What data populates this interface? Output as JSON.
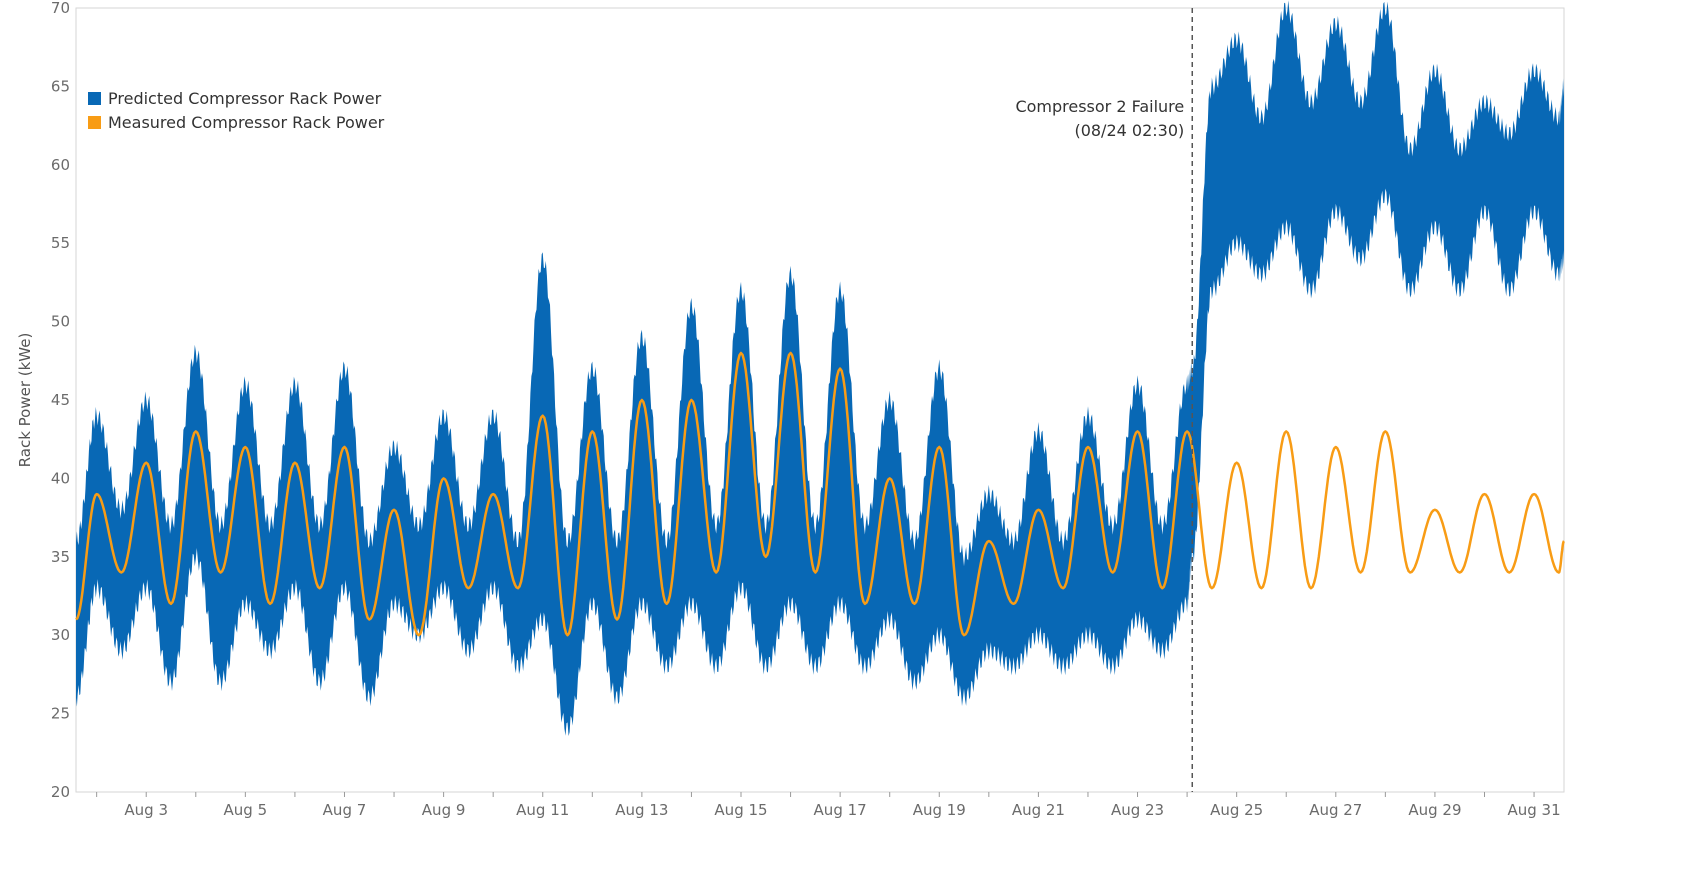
{
  "chart_data": {
    "type": "area",
    "ylabel": "Rack Power (kWe)",
    "xlabel": "",
    "ylim": [
      20,
      70
    ],
    "yticks": [
      20,
      25,
      30,
      35,
      40,
      45,
      50,
      55,
      60,
      65,
      70
    ],
    "xlim": [
      "2018-08-01T14:00",
      "2018-08-31T14:30"
    ],
    "xtick_labels": [
      "Aug 3",
      "Aug 5",
      "Aug 7",
      "Aug 9",
      "Aug 11",
      "Aug 13",
      "Aug 15",
      "Aug 17",
      "Aug 19",
      "Aug 21",
      "Aug 23",
      "Aug 25",
      "Aug 27",
      "Aug 29",
      "Aug 31"
    ],
    "xtick_dates": [
      "2018-08-03",
      "2018-08-05",
      "2018-08-07",
      "2018-08-09",
      "2018-08-11",
      "2018-08-13",
      "2018-08-15",
      "2018-08-17",
      "2018-08-19",
      "2018-08-21",
      "2018-08-23",
      "2018-08-25",
      "2018-08-27",
      "2018-08-29",
      "2018-08-31"
    ],
    "grid": false,
    "legend": {
      "position": "top-left",
      "entries": [
        {
          "label": "Predicted Compressor Rack Power",
          "color": "#0868b5"
        },
        {
          "label": "Measured Compressor Rack Power",
          "color": "#f89c15"
        }
      ]
    },
    "annotation": {
      "line1": "Compressor 2 Failure",
      "line2": "(08/24 02:30)",
      "date": "2018-08-24T02:30"
    },
    "series": [
      {
        "name": "Predicted Compressor Rack Power",
        "kind": "band",
        "color": "#0868b5",
        "x": [
          "2018-08-01T14:00",
          "2018-08-02T00:00",
          "2018-08-02T12:00",
          "2018-08-03T00:00",
          "2018-08-03T12:00",
          "2018-08-04T00:00",
          "2018-08-04T12:00",
          "2018-08-05T00:00",
          "2018-08-05T12:00",
          "2018-08-06T00:00",
          "2018-08-06T12:00",
          "2018-08-07T00:00",
          "2018-08-07T12:00",
          "2018-08-08T00:00",
          "2018-08-08T12:00",
          "2018-08-09T00:00",
          "2018-08-09T12:00",
          "2018-08-10T00:00",
          "2018-08-10T12:00",
          "2018-08-11T00:00",
          "2018-08-11T12:00",
          "2018-08-12T00:00",
          "2018-08-12T12:00",
          "2018-08-13T00:00",
          "2018-08-13T12:00",
          "2018-08-14T00:00",
          "2018-08-14T12:00",
          "2018-08-15T00:00",
          "2018-08-15T12:00",
          "2018-08-16T00:00",
          "2018-08-16T12:00",
          "2018-08-17T00:00",
          "2018-08-17T12:00",
          "2018-08-18T00:00",
          "2018-08-18T12:00",
          "2018-08-19T00:00",
          "2018-08-19T12:00",
          "2018-08-20T00:00",
          "2018-08-20T12:00",
          "2018-08-21T00:00",
          "2018-08-21T12:00",
          "2018-08-22T00:00",
          "2018-08-22T12:00",
          "2018-08-23T00:00",
          "2018-08-23T12:00",
          "2018-08-24T00:00",
          "2018-08-24T02:30",
          "2018-08-24T12:00",
          "2018-08-25T00:00",
          "2018-08-25T12:00",
          "2018-08-26T00:00",
          "2018-08-26T12:00",
          "2018-08-27T00:00",
          "2018-08-27T12:00",
          "2018-08-28T00:00",
          "2018-08-28T12:00",
          "2018-08-29T00:00",
          "2018-08-29T12:00",
          "2018-08-30T00:00",
          "2018-08-30T12:00",
          "2018-08-31T00:00",
          "2018-08-31T12:00",
          "2018-08-31T14:30"
        ],
        "upper": [
          36,
          44,
          38,
          45,
          37,
          48,
          37,
          46,
          37,
          46,
          37,
          47,
          36,
          42,
          37,
          44,
          37,
          44,
          36,
          54,
          36,
          47,
          36,
          49,
          36,
          51,
          37,
          52,
          37,
          53,
          37,
          52,
          37,
          45,
          36,
          47,
          35,
          39,
          36,
          43,
          36,
          44,
          37,
          46,
          37,
          46,
          47,
          65,
          68,
          63,
          70,
          64,
          69,
          64,
          70,
          61,
          66,
          61,
          64,
          62,
          66,
          63,
          65
        ],
        "lower": [
          26,
          33,
          29,
          33,
          27,
          35,
          27,
          32,
          29,
          33,
          27,
          33,
          26,
          32,
          30,
          33,
          29,
          33,
          28,
          31,
          24,
          32,
          26,
          32,
          28,
          32,
          28,
          33,
          28,
          32,
          28,
          32,
          28,
          31,
          27,
          30,
          26,
          29,
          28,
          30,
          28,
          30,
          28,
          31,
          29,
          32,
          35,
          52,
          55,
          53,
          56,
          52,
          57,
          54,
          58,
          52,
          56,
          52,
          57,
          52,
          57,
          53,
          54
        ]
      },
      {
        "name": "Measured Compressor Rack Power",
        "kind": "line",
        "color": "#f89c15",
        "x": [
          "2018-08-01T14:00",
          "2018-08-02T00:00",
          "2018-08-02T12:00",
          "2018-08-03T00:00",
          "2018-08-03T12:00",
          "2018-08-04T00:00",
          "2018-08-04T12:00",
          "2018-08-05T00:00",
          "2018-08-05T12:00",
          "2018-08-06T00:00",
          "2018-08-06T12:00",
          "2018-08-07T00:00",
          "2018-08-07T12:00",
          "2018-08-08T00:00",
          "2018-08-08T12:00",
          "2018-08-09T00:00",
          "2018-08-09T12:00",
          "2018-08-10T00:00",
          "2018-08-10T12:00",
          "2018-08-11T00:00",
          "2018-08-11T12:00",
          "2018-08-12T00:00",
          "2018-08-12T12:00",
          "2018-08-13T00:00",
          "2018-08-13T12:00",
          "2018-08-14T00:00",
          "2018-08-14T12:00",
          "2018-08-15T00:00",
          "2018-08-15T12:00",
          "2018-08-16T00:00",
          "2018-08-16T12:00",
          "2018-08-17T00:00",
          "2018-08-17T12:00",
          "2018-08-18T00:00",
          "2018-08-18T12:00",
          "2018-08-19T00:00",
          "2018-08-19T12:00",
          "2018-08-20T00:00",
          "2018-08-20T12:00",
          "2018-08-21T00:00",
          "2018-08-21T12:00",
          "2018-08-22T00:00",
          "2018-08-22T12:00",
          "2018-08-23T00:00",
          "2018-08-23T12:00",
          "2018-08-24T00:00",
          "2018-08-24T12:00",
          "2018-08-25T00:00",
          "2018-08-25T12:00",
          "2018-08-26T00:00",
          "2018-08-26T12:00",
          "2018-08-27T00:00",
          "2018-08-27T12:00",
          "2018-08-28T00:00",
          "2018-08-28T12:00",
          "2018-08-29T00:00",
          "2018-08-29T12:00",
          "2018-08-30T00:00",
          "2018-08-30T12:00",
          "2018-08-31T00:00",
          "2018-08-31T12:00",
          "2018-08-31T14:30"
        ],
        "y": [
          31,
          39,
          34,
          41,
          32,
          43,
          34,
          42,
          32,
          41,
          33,
          42,
          31,
          38,
          30,
          40,
          33,
          39,
          33,
          44,
          30,
          43,
          31,
          45,
          32,
          45,
          34,
          48,
          35,
          48,
          34,
          47,
          32,
          40,
          32,
          42,
          30,
          36,
          32,
          38,
          33,
          42,
          34,
          43,
          33,
          43,
          33,
          41,
          33,
          43,
          33,
          42,
          34,
          43,
          34,
          38,
          34,
          39,
          34,
          39,
          34,
          36
        ]
      }
    ]
  }
}
